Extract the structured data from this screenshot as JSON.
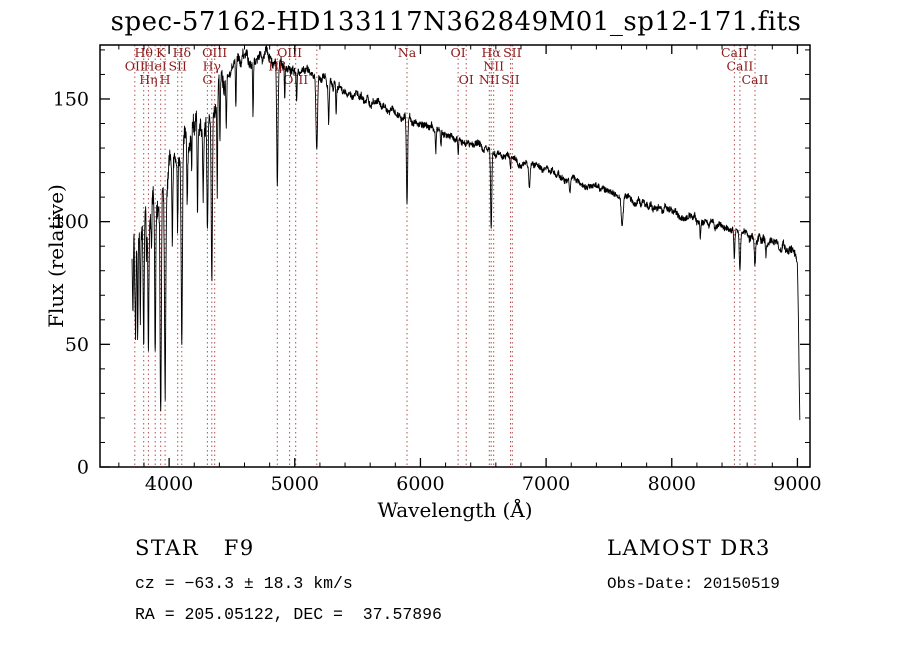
{
  "title": "spec-57162-HD133117N362849M01_sp12-171.fits",
  "footer": {
    "class_label": "STAR   F9",
    "survey": "LAMOST DR3",
    "velocity": "cz = −63.3 ± 18.3 km/s",
    "obs_date": "Obs-Date: 20150519",
    "coordinates": "RA = 205.05122, DEC =  37.57896"
  },
  "chart_data": {
    "type": "line",
    "title": "spec-57162-HD133117N362849M01_sp12-171.fits",
    "xlabel": "Wavelength (Å)",
    "ylabel": "Flux (relative)",
    "xlim": [
      3450,
      9100
    ],
    "ylim": [
      0,
      172
    ],
    "xticks": [
      4000,
      5000,
      6000,
      7000,
      8000,
      9000
    ],
    "yticks": [
      0,
      50,
      100,
      150
    ],
    "x_minor_step": 200,
    "y_minor_step": 10,
    "grid": false,
    "legend": "none",
    "series_color": "#000000",
    "marker_color": "#b05050",
    "marker_label_color": "#8b1a1a",
    "spectrum_range": [
      3705,
      9020
    ],
    "continuum_points": [
      [
        3705,
        88
      ],
      [
        3760,
        97
      ],
      [
        3830,
        102
      ],
      [
        3900,
        108
      ],
      [
        3960,
        113
      ],
      [
        4000,
        122
      ],
      [
        4060,
        128
      ],
      [
        4120,
        132
      ],
      [
        4180,
        138
      ],
      [
        4260,
        140
      ],
      [
        4340,
        147
      ],
      [
        4420,
        157
      ],
      [
        4500,
        163
      ],
      [
        4600,
        167
      ],
      [
        4700,
        166
      ],
      [
        4780,
        168
      ],
      [
        4860,
        164
      ],
      [
        4940,
        162
      ],
      [
        5060,
        161
      ],
      [
        5180,
        159
      ],
      [
        5300,
        156
      ],
      [
        5450,
        152
      ],
      [
        5600,
        149
      ],
      [
        5750,
        146
      ],
      [
        5900,
        142
      ],
      [
        6050,
        139
      ],
      [
        6200,
        136
      ],
      [
        6350,
        133
      ],
      [
        6500,
        130
      ],
      [
        6650,
        127
      ],
      [
        6800,
        124
      ],
      [
        7000,
        121
      ],
      [
        7200,
        117
      ],
      [
        7400,
        114
      ],
      [
        7600,
        111
      ],
      [
        7800,
        107
      ],
      [
        8000,
        104
      ],
      [
        8200,
        101
      ],
      [
        8350,
        98
      ],
      [
        8500,
        96
      ],
      [
        8650,
        93
      ],
      [
        8800,
        91
      ],
      [
        8900,
        89
      ],
      [
        8970,
        87
      ],
      [
        9000,
        84
      ],
      [
        9008,
        62
      ],
      [
        9015,
        30
      ],
      [
        9020,
        14
      ]
    ],
    "absorption_features": [
      {
        "wavelength": 3712,
        "min_flux": 58,
        "sigma": 3
      },
      {
        "wavelength": 3727,
        "min_flux": 72,
        "sigma": 3
      },
      {
        "wavelength": 3734,
        "min_flux": 50,
        "sigma": 3
      },
      {
        "wavelength": 3750,
        "min_flux": 55,
        "sigma": 3
      },
      {
        "wavelength": 3771,
        "min_flux": 60,
        "sigma": 3
      },
      {
        "wavelength": 3798,
        "min_flux": 50,
        "sigma": 4
      },
      {
        "wavelength": 3820,
        "min_flux": 80,
        "sigma": 3
      },
      {
        "wavelength": 3835,
        "min_flux": 46,
        "sigma": 4
      },
      {
        "wavelength": 3860,
        "min_flux": 85,
        "sigma": 3
      },
      {
        "wavelength": 3889,
        "min_flux": 44,
        "sigma": 4
      },
      {
        "wavelength": 3933,
        "min_flux": 20,
        "sigma": 5
      },
      {
        "wavelength": 3968,
        "min_flux": 32,
        "sigma": 5
      },
      {
        "wavelength": 4026,
        "min_flux": 95,
        "sigma": 3
      },
      {
        "wavelength": 4068,
        "min_flux": 102,
        "sigma": 3
      },
      {
        "wavelength": 4101,
        "min_flux": 58,
        "sigma": 5
      },
      {
        "wavelength": 4144,
        "min_flux": 108,
        "sigma": 3
      },
      {
        "wavelength": 4180,
        "min_flux": 118,
        "sigma": 3
      },
      {
        "wavelength": 4226,
        "min_flux": 100,
        "sigma": 3
      },
      {
        "wavelength": 4271,
        "min_flux": 115,
        "sigma": 3
      },
      {
        "wavelength": 4305,
        "min_flux": 96,
        "sigma": 5
      },
      {
        "wavelength": 4340,
        "min_flux": 74,
        "sigma": 5
      },
      {
        "wavelength": 4383,
        "min_flux": 112,
        "sigma": 3
      },
      {
        "wavelength": 4405,
        "min_flux": 125,
        "sigma": 3
      },
      {
        "wavelength": 4455,
        "min_flux": 138,
        "sigma": 3
      },
      {
        "wavelength": 4531,
        "min_flux": 145,
        "sigma": 3
      },
      {
        "wavelength": 4668,
        "min_flux": 146,
        "sigma": 3
      },
      {
        "wavelength": 4861,
        "min_flux": 114,
        "sigma": 5
      },
      {
        "wavelength": 4920,
        "min_flux": 146,
        "sigma": 3
      },
      {
        "wavelength": 5015,
        "min_flux": 147,
        "sigma": 3
      },
      {
        "wavelength": 5175,
        "min_flux": 130,
        "sigma": 6
      },
      {
        "wavelength": 5270,
        "min_flux": 140,
        "sigma": 4
      },
      {
        "wavelength": 5329,
        "min_flux": 143,
        "sigma": 3
      },
      {
        "wavelength": 5893,
        "min_flux": 107,
        "sigma": 5
      },
      {
        "wavelength": 6122,
        "min_flux": 128,
        "sigma": 3
      },
      {
        "wavelength": 6163,
        "min_flux": 130,
        "sigma": 3
      },
      {
        "wavelength": 6300,
        "min_flux": 127,
        "sigma": 3
      },
      {
        "wavelength": 6563,
        "min_flux": 96,
        "sigma": 5
      },
      {
        "wavelength": 6717,
        "min_flux": 121,
        "sigma": 3
      },
      {
        "wavelength": 6867,
        "min_flux": 113,
        "sigma": 6
      },
      {
        "wavelength": 7190,
        "min_flux": 111,
        "sigma": 5
      },
      {
        "wavelength": 7605,
        "min_flux": 99,
        "sigma": 8
      },
      {
        "wavelength": 8227,
        "min_flux": 94,
        "sigma": 4
      },
      {
        "wavelength": 8498,
        "min_flux": 85,
        "sigma": 4
      },
      {
        "wavelength": 8542,
        "min_flux": 80,
        "sigma": 5
      },
      {
        "wavelength": 8662,
        "min_flux": 81,
        "sigma": 5
      },
      {
        "wavelength": 8750,
        "min_flux": 86,
        "sigma": 3
      }
    ],
    "noise": {
      "seed": 42,
      "coarse_spacing": 16,
      "step": 2,
      "regions": [
        [
          3700,
          4000,
          8,
          4
        ],
        [
          4000,
          4450,
          8,
          3.5
        ],
        [
          4450,
          5000,
          3,
          1.8
        ],
        [
          5000,
          5600,
          2.2,
          1.4
        ],
        [
          5600,
          6600,
          1.8,
          1.2
        ],
        [
          6600,
          7600,
          1.6,
          1.1
        ],
        [
          7600,
          8600,
          1.7,
          1.2
        ],
        [
          8600,
          9021,
          2.2,
          1.5
        ]
      ]
    },
    "spectral_lines": [
      {
        "wavelength": 3727,
        "label": "OII",
        "row": 2
      },
      {
        "wavelength": 3798,
        "label": "Hθ",
        "row": 1
      },
      {
        "wavelength": 3835,
        "label": "Hη",
        "row": 3
      },
      {
        "wavelength": 3889,
        "label": "HeI",
        "row": 2
      },
      {
        "wavelength": 3933,
        "label": "K",
        "row": 1
      },
      {
        "wavelength": 3968,
        "label": "H",
        "row": 3
      },
      {
        "wavelength": 4068,
        "label": "SII",
        "row": 2
      },
      {
        "wavelength": 4101,
        "label": "Hδ",
        "row": 1
      },
      {
        "wavelength": 4305,
        "label": "G",
        "row": 3
      },
      {
        "wavelength": 4340,
        "label": "Hγ",
        "row": 2
      },
      {
        "wavelength": 4363,
        "label": "OIII",
        "row": 1
      },
      {
        "wavelength": 4861,
        "label": "Hβ",
        "row": 2
      },
      {
        "wavelength": 4959,
        "label": "OIII",
        "row": 1
      },
      {
        "wavelength": 5007,
        "label": "OIII",
        "row": 3
      },
      {
        "wavelength": 5175,
        "label": "",
        "row": 0
      },
      {
        "wavelength": 5893,
        "label": "Na",
        "row": 1
      },
      {
        "wavelength": 6300,
        "label": "OI",
        "row": 1
      },
      {
        "wavelength": 6364,
        "label": "OI",
        "row": 3
      },
      {
        "wavelength": 6548,
        "label": "NII",
        "row": 3
      },
      {
        "wavelength": 6563,
        "label": "Hα",
        "row": 1
      },
      {
        "wavelength": 6583,
        "label": "NII",
        "row": 2
      },
      {
        "wavelength": 6717,
        "label": "SII",
        "row": 3
      },
      {
        "wavelength": 6731,
        "label": "SII",
        "row": 1
      },
      {
        "wavelength": 8498,
        "label": "CaII",
        "row": 1
      },
      {
        "wavelength": 8542,
        "label": "CaII",
        "row": 2
      },
      {
        "wavelength": 8662,
        "label": "CaII",
        "row": 3
      }
    ]
  }
}
